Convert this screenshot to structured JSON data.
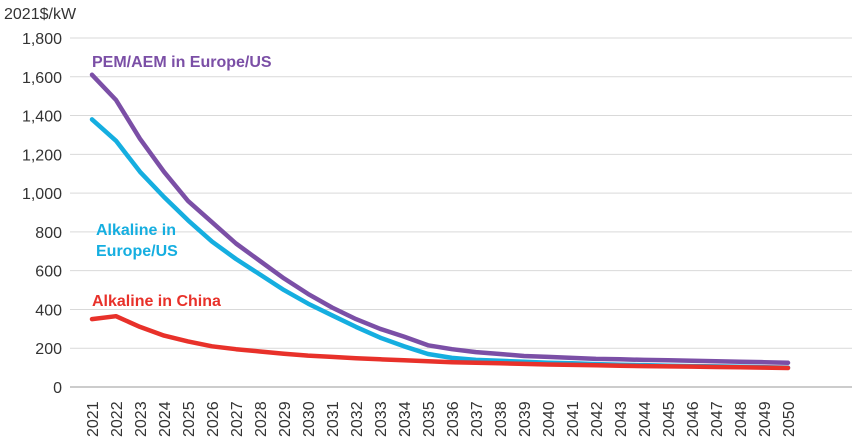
{
  "chart_data": {
    "type": "line",
    "unit_label": "2021$/kW",
    "x": [
      2021,
      2022,
      2023,
      2024,
      2025,
      2026,
      2027,
      2028,
      2029,
      2030,
      2031,
      2032,
      2033,
      2034,
      2035,
      2036,
      2037,
      2038,
      2039,
      2040,
      2041,
      2042,
      2043,
      2044,
      2045,
      2046,
      2047,
      2048,
      2049,
      2050
    ],
    "x_tick_labels": [
      "2021",
      "2022",
      "2023",
      "2024",
      "2025",
      "2026",
      "2027",
      "2028",
      "2029",
      "2030",
      "2031",
      "2032",
      "2033",
      "2034",
      "2035",
      "2036",
      "2037",
      "2038",
      "2039",
      "2040",
      "2041",
      "2042",
      "2043",
      "2044",
      "2045",
      "2046",
      "2047",
      "2048",
      "2049",
      "2050"
    ],
    "ylim": [
      0,
      1800
    ],
    "y_ticks": [
      0,
      200,
      400,
      600,
      800,
      1000,
      1200,
      1400,
      1600,
      1800
    ],
    "y_tick_labels": [
      "0",
      "200",
      "400",
      "600",
      "800",
      "1,000",
      "1,200",
      "1,400",
      "1,600",
      "1,800"
    ],
    "grid": true,
    "series": [
      {
        "name": "PEM/AEM in Europe/US",
        "label_lines": [
          "PEM/AEM in Europe/US"
        ],
        "color": "#7b4fa6",
        "values": [
          1610,
          1480,
          1280,
          1110,
          960,
          850,
          740,
          650,
          560,
          480,
          410,
          350,
          300,
          260,
          215,
          195,
          180,
          170,
          160,
          155,
          150,
          145,
          143,
          140,
          138,
          135,
          133,
          130,
          128,
          125
        ]
      },
      {
        "name": "Alkaline in Europe/US",
        "label_lines": [
          "Alkaline in",
          "Europe/US"
        ],
        "color": "#15aee0",
        "values": [
          1380,
          1270,
          1110,
          980,
          860,
          750,
          660,
          580,
          500,
          430,
          370,
          310,
          255,
          210,
          170,
          150,
          140,
          135,
          130,
          125,
          122,
          118,
          115,
          113,
          110,
          108,
          106,
          104,
          102,
          100
        ]
      },
      {
        "name": "Alkaline in China",
        "label_lines": [
          "Alkaline in China"
        ],
        "color": "#e8312a",
        "values": [
          350,
          365,
          310,
          265,
          235,
          210,
          195,
          183,
          172,
          162,
          155,
          148,
          143,
          138,
          133,
          128,
          125,
          122,
          119,
          116,
          114,
          112,
          110,
          108,
          106,
          105,
          103,
          102,
          100,
          98
        ]
      }
    ]
  }
}
